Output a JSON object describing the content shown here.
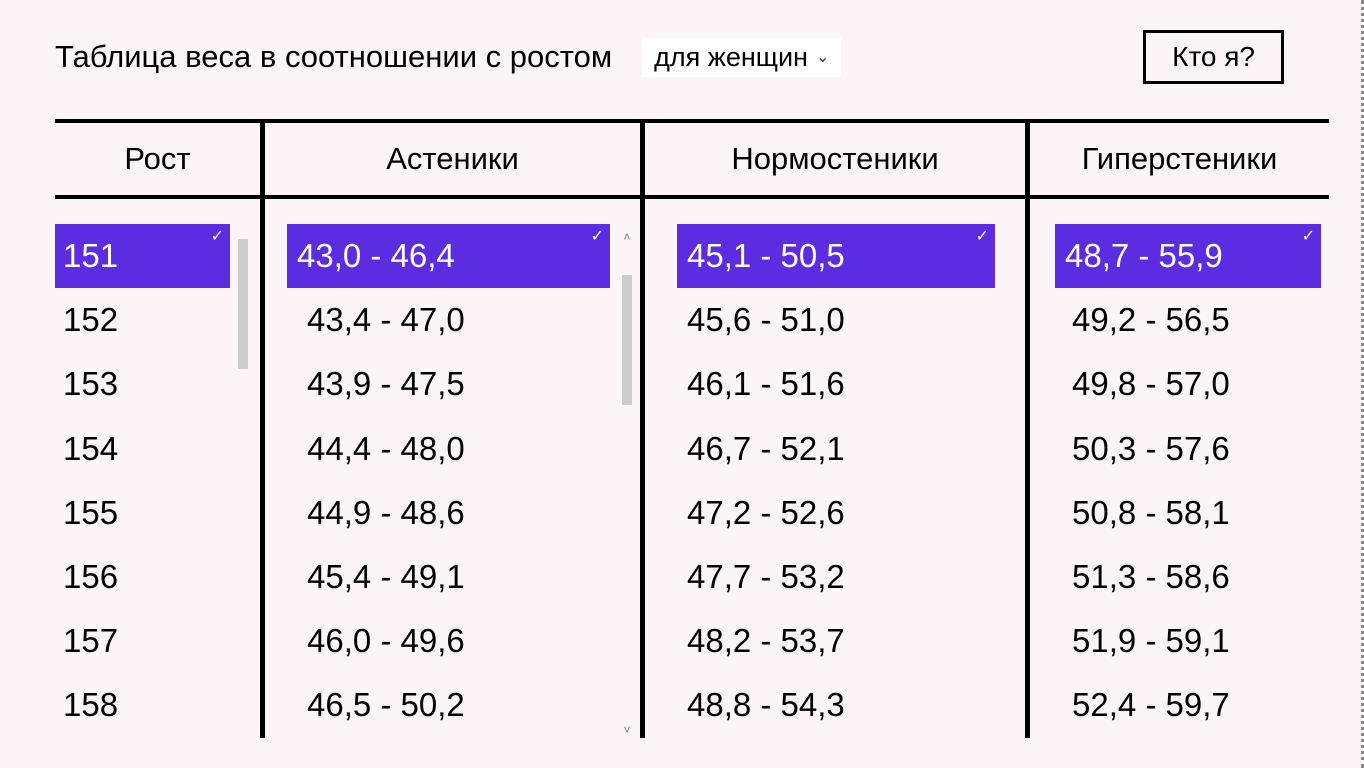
{
  "header": {
    "title": "Таблица веса в соотношении с ростом",
    "dropdown_label": "для женщин",
    "who_button": "Кто я?"
  },
  "columns": [
    "Рост",
    "Астеники",
    "Нормостеники",
    "Гиперстеники"
  ],
  "selected_index": 0,
  "rows": [
    {
      "height": "151",
      "asthenic": "43,0 - 46,4",
      "normo": "45,1 - 50,5",
      "hyper": "48,7 - 55,9"
    },
    {
      "height": "152",
      "asthenic": "43,4 - 47,0",
      "normo": "45,6 - 51,0",
      "hyper": "49,2 - 56,5"
    },
    {
      "height": "153",
      "asthenic": "43,9 - 47,5",
      "normo": "46,1 - 51,6",
      "hyper": "49,8 - 57,0"
    },
    {
      "height": "154",
      "asthenic": "44,4 - 48,0",
      "normo": "46,7 - 52,1",
      "hyper": "50,3 - 57,6"
    },
    {
      "height": "155",
      "asthenic": "44,9 - 48,6",
      "normo": "47,2 - 52,6",
      "hyper": "50,8 - 58,1"
    },
    {
      "height": "156",
      "asthenic": "45,4 - 49,1",
      "normo": "47,7 - 53,2",
      "hyper": "51,3 - 58,6"
    },
    {
      "height": "157",
      "asthenic": "46,0 - 49,6",
      "normo": "48,2 - 53,7",
      "hyper": "51,9 - 59,1"
    },
    {
      "height": "158",
      "asthenic": "46,5 - 50,2",
      "normo": "48,8 - 54,3",
      "hyper": "52,4 - 59,7"
    }
  ],
  "colors": {
    "background": "#fcf5f7",
    "selected_bg": "#5c2de0",
    "selected_text": "#ffffff",
    "text": "#000000",
    "border": "#000000",
    "scroll_thumb": "#cdcdcd"
  }
}
